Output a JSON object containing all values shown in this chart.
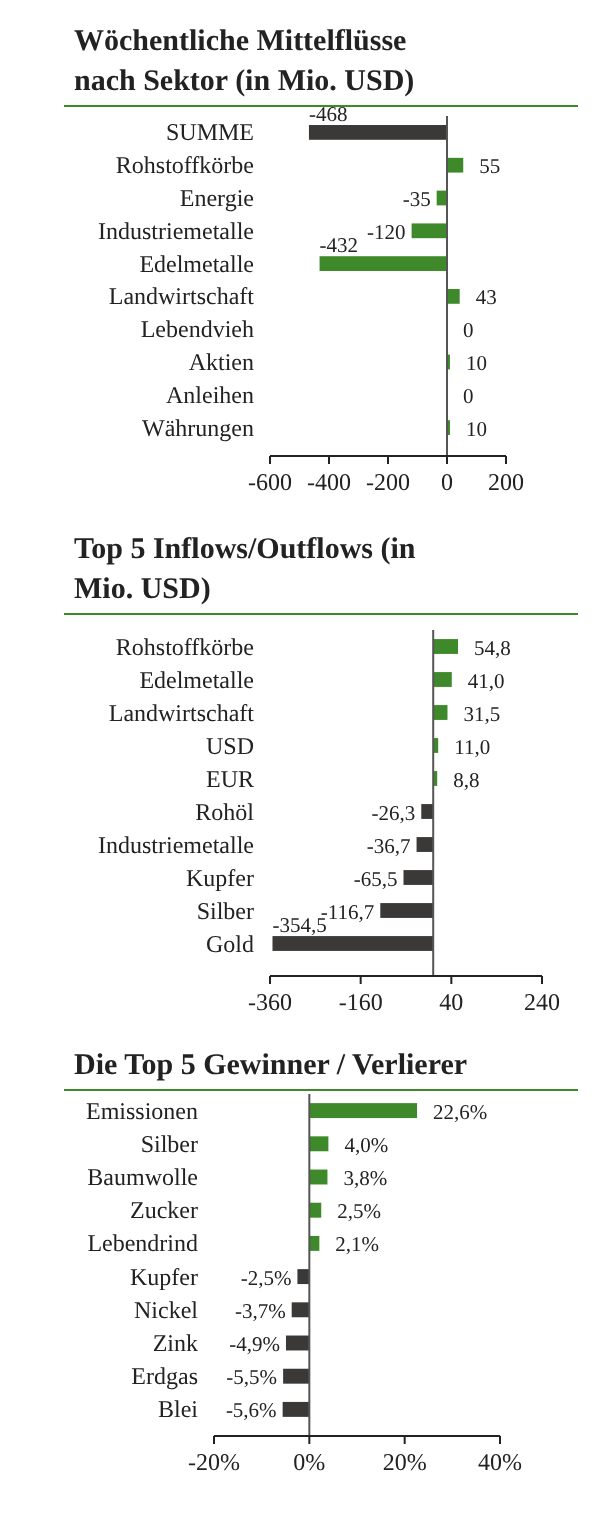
{
  "chart_data": [
    {
      "type": "bar",
      "orientation": "horizontal",
      "title": "Wöchentliche Mittelflüsse nach Sektor (in Mio. USD)",
      "categories": [
        "SUMME",
        "Rohstoffkörbe",
        "Energie",
        "Industriemetalle",
        "Edelmetalle",
        "Landwirtschaft",
        "Lebendvieh",
        "Aktien",
        "Anleihen",
        "Währungen"
      ],
      "values": [
        -468,
        55,
        -35,
        -120,
        -432,
        43,
        0,
        10,
        0,
        10
      ],
      "colors": [
        "#3b3838",
        "#3e8a2a",
        "#3e8a2a",
        "#3e8a2a",
        "#3e8a2a",
        "#3e8a2a",
        "#3e8a2a",
        "#3e8a2a",
        "#3e8a2a",
        "#3e8a2a"
      ],
      "value_labels": [
        "-468",
        "55",
        "-35",
        "-120",
        "-432",
        "43",
        "0",
        "10",
        "0",
        "10"
      ],
      "xlim": [
        -600,
        200
      ],
      "xticks": [
        -600,
        -400,
        -200,
        0,
        200
      ]
    },
    {
      "type": "bar",
      "orientation": "horizontal",
      "title": "Top 5 Inflows/Outflows (in Mio. USD)",
      "categories": [
        "Rohstoffkörbe",
        "Edelmetalle",
        "Landwirtschaft",
        "USD",
        "EUR",
        "Rohöl",
        "Industriemetalle",
        "Kupfer",
        "Silber",
        "Gold"
      ],
      "values": [
        54.8,
        41.0,
        31.5,
        11.0,
        8.8,
        -26.3,
        -36.7,
        -65.5,
        -116.7,
        -354.5
      ],
      "colors": [
        "#3e8a2a",
        "#3e8a2a",
        "#3e8a2a",
        "#3e8a2a",
        "#3e8a2a",
        "#3b3838",
        "#3b3838",
        "#3b3838",
        "#3b3838",
        "#3b3838"
      ],
      "value_labels": [
        "54,8",
        "41,0",
        "31,5",
        "11,0",
        "8,8",
        "-26,3",
        "-36,7",
        "-65,5",
        "-116,7",
        "-354,5"
      ],
      "xlim": [
        -360,
        240
      ],
      "xticks": [
        -360,
        -160,
        40,
        240
      ]
    },
    {
      "type": "bar",
      "orientation": "horizontal",
      "title": "Die Top 5 Gewinner / Verlierer",
      "categories": [
        "Emissionen",
        "Silber",
        "Baumwolle",
        "Zucker",
        "Lebendrind",
        "Kupfer",
        "Nickel",
        "Zink",
        "Erdgas",
        "Blei"
      ],
      "values": [
        22.6,
        4.0,
        3.8,
        2.5,
        2.1,
        -2.5,
        -3.7,
        -4.9,
        -5.5,
        -5.6
      ],
      "colors": [
        "#3e8a2a",
        "#3e8a2a",
        "#3e8a2a",
        "#3e8a2a",
        "#3e8a2a",
        "#3b3838",
        "#3b3838",
        "#3b3838",
        "#3b3838",
        "#3b3838"
      ],
      "value_labels": [
        "22,6%",
        "4,0%",
        "3,8%",
        "2,5%",
        "2,1%",
        "-2,5%",
        "-3,7%",
        "-4,9%",
        "-5,5%",
        "-5,6%"
      ],
      "xlim": [
        -20,
        40
      ],
      "xticks": [
        {
          "value": -20,
          "label": "-20%"
        },
        {
          "value": 0,
          "label": "0%"
        },
        {
          "value": 20,
          "label": "20%"
        },
        {
          "value": 40,
          "label": "40%"
        }
      ]
    }
  ]
}
